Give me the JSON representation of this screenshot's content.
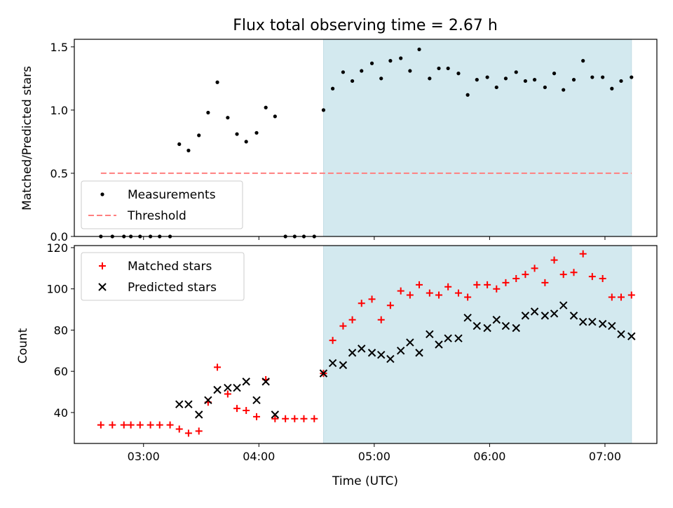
{
  "chart_data": {
    "type": "scatter",
    "title": "Flux total observing time = 2.67 h",
    "xlabel": "Time (UTC)",
    "x_tick_labels": [
      "03:00",
      "04:00",
      "05:00",
      "06:00",
      "07:00"
    ],
    "x_ticks_hours": [
      3,
      4,
      5,
      6,
      7
    ],
    "xlim_hours": [
      2.4,
      7.45
    ],
    "highlight_span_hours": [
      4.56,
      7.23
    ],
    "highlight_color": "#d3e9ef",
    "times_hours": [
      2.63,
      2.73,
      2.83,
      2.89,
      2.97,
      3.06,
      3.14,
      3.23,
      3.31,
      3.39,
      3.48,
      3.56,
      3.64,
      3.73,
      3.81,
      3.89,
      3.98,
      4.06,
      4.14,
      4.23,
      4.31,
      4.39,
      4.48,
      4.56,
      4.64,
      4.73,
      4.81,
      4.89,
      4.98,
      5.06,
      5.14,
      5.23,
      5.31,
      5.39,
      5.48,
      5.56,
      5.64,
      5.73,
      5.81,
      5.89,
      5.98,
      6.06,
      6.14,
      6.23,
      6.31,
      6.39,
      6.48,
      6.56,
      6.64,
      6.73,
      6.81,
      6.89,
      6.98,
      7.06,
      7.14,
      7.23
    ],
    "panels": [
      {
        "ylabel": "Matched/Predicted stars",
        "ylim": [
          0,
          1.56
        ],
        "y_ticks": [
          0.0,
          0.5,
          1.0,
          1.5
        ],
        "y_tick_labels": [
          "0.0",
          "0.5",
          "1.0",
          "1.5"
        ],
        "legend_position": "lower-left",
        "series": [
          {
            "name": "Measurements",
            "marker": "dot",
            "color": "#000000",
            "values": [
              0,
              0,
              0,
              0,
              0,
              0,
              0,
              0,
              0.73,
              0.68,
              0.8,
              0.98,
              1.22,
              0.94,
              0.81,
              0.75,
              0.82,
              1.02,
              0.95,
              0,
              0,
              0,
              0,
              1.0,
              1.17,
              1.3,
              1.23,
              1.31,
              1.37,
              1.25,
              1.39,
              1.41,
              1.31,
              1.48,
              1.25,
              1.33,
              1.33,
              1.29,
              1.12,
              1.24,
              1.26,
              1.18,
              1.25,
              1.3,
              1.23,
              1.24,
              1.18,
              1.29,
              1.16,
              1.24,
              1.39,
              1.26,
              1.26,
              1.17,
              1.23,
              1.26
            ]
          },
          {
            "name": "Threshold",
            "style": "dashed",
            "color": "#ff7f7f",
            "x_range_hours": [
              2.63,
              7.23
            ],
            "value": 0.5
          }
        ]
      },
      {
        "ylabel": "Count",
        "ylim": [
          25,
          121
        ],
        "y_ticks": [
          40,
          60,
          80,
          100,
          120
        ],
        "y_tick_labels": [
          "40",
          "60",
          "80",
          "100",
          "120"
        ],
        "legend_position": "upper-left",
        "series": [
          {
            "name": "Matched stars",
            "marker": "plus",
            "color": "#ff0000",
            "values": [
              34,
              34,
              34,
              34,
              34,
              34,
              34,
              34,
              32,
              30,
              31,
              45,
              62,
              49,
              42,
              41,
              38,
              56,
              37,
              37,
              37,
              37,
              37,
              59,
              75,
              82,
              85,
              93,
              95,
              85,
              92,
              99,
              97,
              102,
              98,
              97,
              101,
              98,
              96,
              102,
              102,
              100,
              103,
              105,
              107,
              110,
              103,
              114,
              107,
              108,
              117,
              106,
              105,
              96,
              96,
              97
            ]
          },
          {
            "name": "Predicted stars",
            "marker": "x",
            "color": "#000000",
            "values": [
              null,
              null,
              null,
              null,
              null,
              null,
              null,
              null,
              44,
              44,
              39,
              46,
              51,
              52,
              52,
              55,
              46,
              55,
              39,
              null,
              null,
              null,
              null,
              59,
              64,
              63,
              69,
              71,
              69,
              68,
              66,
              70,
              74,
              69,
              78,
              73,
              76,
              76,
              86,
              82,
              81,
              85,
              82,
              81,
              87,
              89,
              87,
              88,
              92,
              87,
              84,
              84,
              83,
              82,
              78,
              77
            ]
          }
        ]
      }
    ]
  }
}
